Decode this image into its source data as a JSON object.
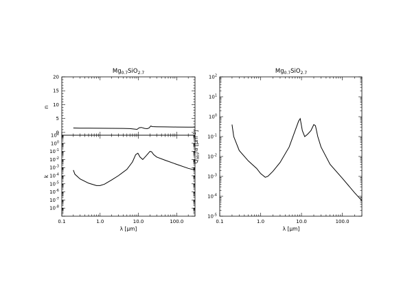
{
  "chart_data": [
    {
      "type": "line",
      "panel": "left-top",
      "title": "Mg0.7SiO2.7",
      "title_parts": {
        "a": "Mg",
        "a_sub": "0.7",
        "b": "SiO",
        "b_sub": "2.7"
      },
      "xlabel": "",
      "ylabel": "n",
      "x_scale": "log",
      "y_scale": "linear",
      "xlim": [
        0.1,
        300
      ],
      "ylim": [
        -1,
        20
      ],
      "y_ticks": [
        0,
        5,
        10,
        15,
        20
      ],
      "y_tick_labels": [
        "0",
        "5",
        "10",
        "15",
        "20"
      ],
      "series": [
        {
          "x": [
            0.2,
            0.3,
            0.5,
            1.0,
            2.0,
            4.0,
            6.0,
            8.0,
            9.2,
            10.5,
            12.0,
            14.5,
            17.0,
            19.0,
            21.0,
            23.0,
            30.0,
            50.0,
            100.0,
            200.0,
            300.0
          ],
          "y": [
            1.6,
            1.55,
            1.52,
            1.5,
            1.48,
            1.45,
            1.38,
            1.2,
            1.1,
            1.7,
            1.8,
            1.45,
            1.35,
            1.6,
            2.3,
            2.1,
            2.05,
            1.98,
            1.93,
            1.9,
            1.9
          ]
        }
      ]
    },
    {
      "type": "line",
      "panel": "left-bottom",
      "xlabel": "λ [μm]",
      "ylabel": "k",
      "x_scale": "log",
      "y_scale": "log",
      "xlim": [
        0.1,
        300
      ],
      "ylim": [
        1e-08,
        100
      ],
      "x_tick_labels": [
        "0.1",
        "1.0",
        "10.0",
        "100.0"
      ],
      "y_tick_labels": [
        "10^1",
        "10^0",
        "10^-1",
        "10^-2",
        "10^-3",
        "10^-4",
        "10^-5",
        "10^-6",
        "10^-7",
        "10^-8"
      ],
      "series": [
        {
          "x": [
            0.2,
            0.22,
            0.3,
            0.5,
            0.8,
            1.0,
            1.3,
            2.0,
            3.0,
            5.0,
            7.0,
            8.5,
            9.7,
            11.0,
            13.0,
            16.0,
            20.0,
            22.0,
            25.0,
            30.0,
            50.0,
            100.0,
            200.0,
            300.0
          ],
          "y": [
            0.005,
            0.0015,
            0.0004,
            0.00012,
            6e-05,
            6e-05,
            9e-05,
            0.0003,
            0.001,
            0.006,
            0.05,
            0.4,
            0.6,
            0.2,
            0.1,
            0.3,
            1.0,
            0.9,
            0.4,
            0.2,
            0.08,
            0.025,
            0.008,
            0.005
          ]
        }
      ]
    },
    {
      "type": "line",
      "panel": "right",
      "title": "Mg0.7SiO2.7",
      "title_parts": {
        "a": "Mg",
        "a_sub": "0.7",
        "b": "SiO",
        "b_sub": "2.7"
      },
      "xlabel": "λ [μm]",
      "ylabel": "Qabs/a [μm-1]",
      "ylabel_parts": {
        "q": "Q",
        "q_sub": "abs",
        "rest": "/a [μm",
        "sup": "-1",
        "end": "]"
      },
      "x_scale": "log",
      "y_scale": "log",
      "xlim": [
        0.1,
        300
      ],
      "ylim": [
        1e-05,
        100
      ],
      "x_tick_labels": [
        "0.1",
        "1.0",
        "10.0",
        "100.0"
      ],
      "y_tick_labels": [
        "10^2",
        "10^1",
        "10^0",
        "10^-1",
        "10^-2",
        "10^-3",
        "10^-4",
        "10^-5"
      ],
      "series": [
        {
          "x": [
            0.2,
            0.22,
            0.3,
            0.5,
            0.8,
            1.0,
            1.3,
            1.5,
            2.0,
            3.0,
            5.0,
            7.0,
            8.5,
            9.3,
            10.5,
            12.0,
            14.0,
            17.0,
            20.0,
            22.0,
            25.0,
            30.0,
            50.0,
            100.0,
            200.0,
            300.0
          ],
          "y": [
            0.4,
            0.1,
            0.02,
            0.006,
            0.0025,
            0.0014,
            0.0009,
            0.001,
            0.0018,
            0.005,
            0.03,
            0.2,
            0.6,
            0.8,
            0.2,
            0.1,
            0.13,
            0.2,
            0.4,
            0.35,
            0.1,
            0.03,
            0.004,
            0.0008,
            0.00015,
            6e-05
          ]
        }
      ]
    }
  ]
}
